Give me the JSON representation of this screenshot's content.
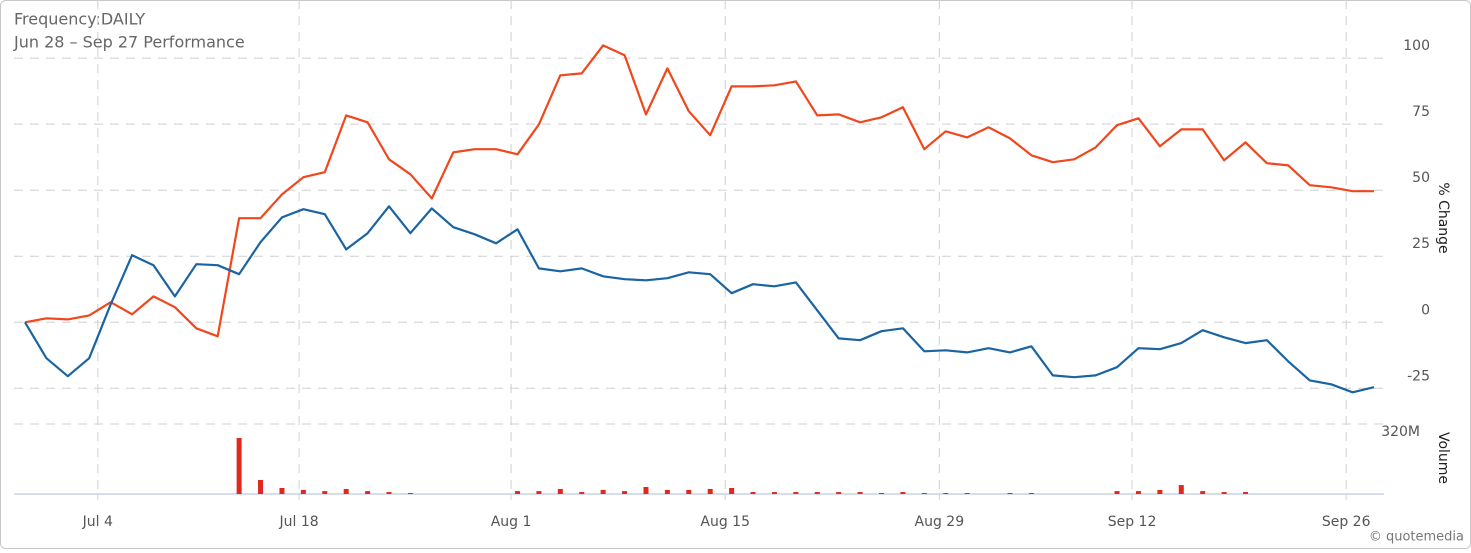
{
  "chart_data": [
    {
      "type": "line",
      "title": "Frequency:DAILY",
      "subtitle": "Jun 28 – Sep 27 Performance",
      "ylabel": "% Change",
      "categories": [
        null,
        null,
        null,
        null,
        null,
        null,
        null,
        null,
        null,
        null,
        null,
        null,
        null,
        null,
        null,
        null,
        null,
        null,
        null,
        null,
        null,
        null,
        null,
        null,
        null,
        null,
        null,
        null,
        null,
        null,
        null,
        null,
        null,
        null,
        null,
        null,
        null,
        null,
        null,
        null,
        null,
        null,
        null,
        null,
        null,
        null,
        null,
        null,
        null,
        null,
        null,
        null,
        null,
        null,
        null,
        null,
        null,
        null,
        null,
        null,
        null,
        null,
        null,
        null
      ],
      "xticks": [
        {
          "value": 3.4,
          "label": "Jul 4"
        },
        {
          "value": 12.8,
          "label": "Jul 18"
        },
        {
          "value": 22.7,
          "label": "Aug 1"
        },
        {
          "value": 32.7,
          "label": "Aug 15"
        },
        {
          "value": 42.7,
          "label": "Aug 29"
        },
        {
          "value": 51.7,
          "label": "Sep 12"
        },
        {
          "value": 61.7,
          "label": "Sep 26"
        }
      ],
      "ylim": [
        -37,
        122
      ],
      "yticks": [
        -25,
        0,
        25,
        50,
        75,
        100
      ],
      "grid": true,
      "series": [
        {
          "color": "#f0471c",
          "values": [
            0,
            1.5,
            1.1,
            2.6,
            7.6,
            3,
            9.8,
            5.7,
            -2.3,
            -5.3,
            39.4,
            39.4,
            48.4,
            54.9,
            56.8,
            78.3,
            75.7,
            61.7,
            56,
            46.9,
            64.3,
            65.5,
            65.5,
            63.6,
            74.9,
            93.5,
            94.2,
            104.8,
            101.1,
            78.7,
            96.1,
            79.9,
            70.8,
            89.3,
            89.3,
            89.7,
            91.2,
            78.3,
            78.7,
            75.7,
            77.6,
            81.4,
            65.5,
            72.3,
            70,
            73.8,
            69.6,
            63.2,
            60.6,
            61.7,
            66.2,
            74.6,
            77.2,
            66.6,
            73,
            73,
            61.3,
            68.1,
            60.2,
            59.4,
            51.9,
            51.1,
            49.6,
            49.6
          ]
        },
        {
          "color": "#1a64a2",
          "values": [
            0,
            -13.6,
            -20.4,
            -13.6,
            6.8,
            25.4,
            21.6,
            9.8,
            22,
            21.6,
            18.2,
            30.3,
            39.7,
            42.8,
            40.9,
            27.6,
            33.7,
            43.9,
            33.7,
            43.1,
            36,
            33.3,
            29.9,
            35.2,
            20.4,
            19.3,
            20.4,
            17.4,
            16.3,
            15.9,
            16.7,
            18.9,
            18.2,
            11,
            14.4,
            13.6,
            15.1,
            4.5,
            -6.1,
            -6.8,
            -3.4,
            -2.3,
            -11,
            -10.6,
            -11.4,
            -9.8,
            -11.4,
            -9.1,
            -20.1,
            -20.8,
            -20.1,
            -17,
            -9.8,
            -10.2,
            -7.9,
            -3,
            -5.7,
            -7.9,
            -6.8,
            -14.8,
            -22,
            -23.5,
            -26.5,
            -24.6
          ]
        }
      ]
    },
    {
      "type": "bar",
      "ylabel": "Volume",
      "color": "#e0281c",
      "ylim": [
        0,
        360
      ],
      "yticks": [
        {
          "value": 320,
          "label": "320M"
        }
      ],
      "values": [
        0,
        0,
        0,
        0,
        0,
        0,
        0,
        0,
        0,
        0,
        288,
        72,
        31,
        21,
        15,
        26,
        15,
        10,
        5,
        0,
        0,
        0,
        0,
        15,
        15,
        26,
        10,
        21,
        15,
        36,
        21,
        21,
        26,
        31,
        10,
        10,
        10,
        10,
        10,
        10,
        5,
        10,
        5,
        5,
        5,
        0,
        5,
        5,
        0,
        0,
        0,
        15,
        15,
        21,
        46,
        15,
        10,
        10,
        0,
        0,
        0,
        0,
        0,
        0
      ]
    }
  ],
  "footer": "© quotemedia"
}
